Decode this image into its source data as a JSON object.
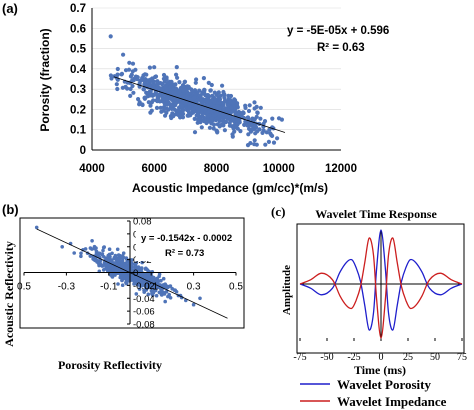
{
  "chart_data": [
    {
      "panel_label": "(a)",
      "type": "scatter",
      "title": "",
      "xlabel": "Acoustic Impedance (gm/cc)*(m/s)",
      "ylabel": "Porosity (fraction)",
      "xlim": [
        4000,
        12000
      ],
      "ylim": [
        0,
        0.7
      ],
      "xticks": [
        "4000",
        "6000",
        "8000",
        "10000",
        "12000"
      ],
      "yticks": [
        "0",
        "0.1",
        "0.2",
        "0.3",
        "0.4",
        "0.5",
        "0.6",
        "0.7"
      ],
      "grid": "horizontal",
      "marker_color": "#4f74b8",
      "trendline": {
        "slope": -5e-05,
        "intercept": 0.596,
        "x_range": [
          4700,
          10200
        ]
      },
      "annotations": [
        "y = -5E-05x + 0.596",
        "R² = 0.63"
      ],
      "cloud": {
        "x_center": 7300,
        "x_spread": 1100,
        "x_min": 4600,
        "x_max": 10100,
        "y_scatter": 0.045,
        "count": 900
      },
      "sample_points": [
        {
          "x": 4600,
          "y": 0.56
        },
        {
          "x": 5000,
          "y": 0.47
        },
        {
          "x": 5200,
          "y": 0.43
        },
        {
          "x": 5700,
          "y": 0.34
        },
        {
          "x": 6200,
          "y": 0.33
        },
        {
          "x": 7000,
          "y": 0.24
        },
        {
          "x": 7500,
          "y": 0.2
        },
        {
          "x": 8000,
          "y": 0.18
        },
        {
          "x": 8700,
          "y": 0.15
        },
        {
          "x": 9200,
          "y": 0.12
        },
        {
          "x": 9700,
          "y": 0.1
        },
        {
          "x": 10100,
          "y": 0.15
        }
      ]
    },
    {
      "panel_label": "(b)",
      "type": "scatter",
      "title": "",
      "xlabel": "Porosity Reflectivity",
      "ylabel": "Acoustic Reflectivity",
      "xlim": [
        -0.5,
        0.5
      ],
      "ylim": [
        -0.08,
        0.08
      ],
      "xticks": [
        "0.5",
        "-0.3",
        "-0.1",
        "0.1",
        "0.3",
        "0.5"
      ],
      "yticks": [
        "0.08",
        "0.06",
        "0.04",
        "0.02",
        "0",
        "-0.02",
        "-0.04",
        "-0.06",
        "-0.08"
      ],
      "grid": "none",
      "marker_color": "#4f74b8",
      "trendline": {
        "slope": -0.1542,
        "intercept": -0.0002,
        "x_range": [
          -0.44,
          0.46
        ]
      },
      "annotations": [
        "y = -0.1542x - 0.0002",
        "R² = 0.73"
      ],
      "cloud": {
        "x_center": 0,
        "x_spread": 0.09,
        "x_min": -0.45,
        "x_max": 0.35,
        "y_scatter": 0.009,
        "count": 600
      },
      "sample_points": [
        {
          "x": -0.44,
          "y": 0.07
        },
        {
          "x": -0.32,
          "y": 0.04
        },
        {
          "x": -0.28,
          "y": 0.045
        },
        {
          "x": -0.2,
          "y": 0.03
        },
        {
          "x": -0.15,
          "y": 0.03
        },
        {
          "x": -0.05,
          "y": 0.02
        },
        {
          "x": 0.05,
          "y": -0.02
        },
        {
          "x": 0.15,
          "y": -0.035
        },
        {
          "x": 0.22,
          "y": -0.03
        },
        {
          "x": 0.3,
          "y": -0.05
        },
        {
          "x": 0.33,
          "y": -0.04
        }
      ]
    },
    {
      "panel_label": "(c)",
      "type": "line",
      "title": "Wavelet Time Response",
      "xlabel": "Time (ms)",
      "ylabel": "Amplitude",
      "xlim": [
        -75,
        75
      ],
      "ylim": [
        -1,
        1
      ],
      "xticks": [
        "-75",
        "-50",
        "-25",
        "0",
        "25",
        "50",
        "75"
      ],
      "grid": "none",
      "series": [
        {
          "name": "Wavelet Porosity",
          "color": "#1f1fcc",
          "x": [
            -75,
            -65,
            -55,
            -45,
            -38,
            -32,
            -27,
            -23,
            -19,
            -15,
            -11,
            -7,
            -4,
            0,
            4,
            7,
            11,
            15,
            19,
            23,
            27,
            32,
            38,
            45,
            55,
            65,
            75
          ],
          "y": [
            0,
            -0.08,
            -0.2,
            -0.08,
            0.22,
            0.4,
            0.45,
            0.3,
            0.05,
            -0.4,
            -0.85,
            -0.55,
            0.3,
            1.0,
            0.3,
            -0.55,
            -0.85,
            -0.4,
            0.05,
            0.3,
            0.45,
            0.4,
            0.22,
            -0.08,
            -0.2,
            -0.08,
            0
          ]
        },
        {
          "name": "Wavelet Impedance",
          "color": "#cc1f1f",
          "x": [
            -75,
            -65,
            -55,
            -45,
            -38,
            -32,
            -27,
            -23,
            -19,
            -15,
            -11,
            -7,
            -4,
            0,
            4,
            7,
            11,
            15,
            19,
            23,
            27,
            32,
            38,
            45,
            55,
            65,
            75
          ],
          "y": [
            0,
            0.08,
            0.2,
            0.08,
            -0.22,
            -0.4,
            -0.45,
            -0.3,
            -0.05,
            0.4,
            0.85,
            0.55,
            -0.3,
            -1.0,
            -0.3,
            0.55,
            0.85,
            0.4,
            -0.05,
            -0.3,
            -0.45,
            -0.4,
            -0.22,
            0.08,
            0.2,
            0.08,
            0
          ]
        }
      ],
      "legend_placement": "bottom"
    }
  ]
}
